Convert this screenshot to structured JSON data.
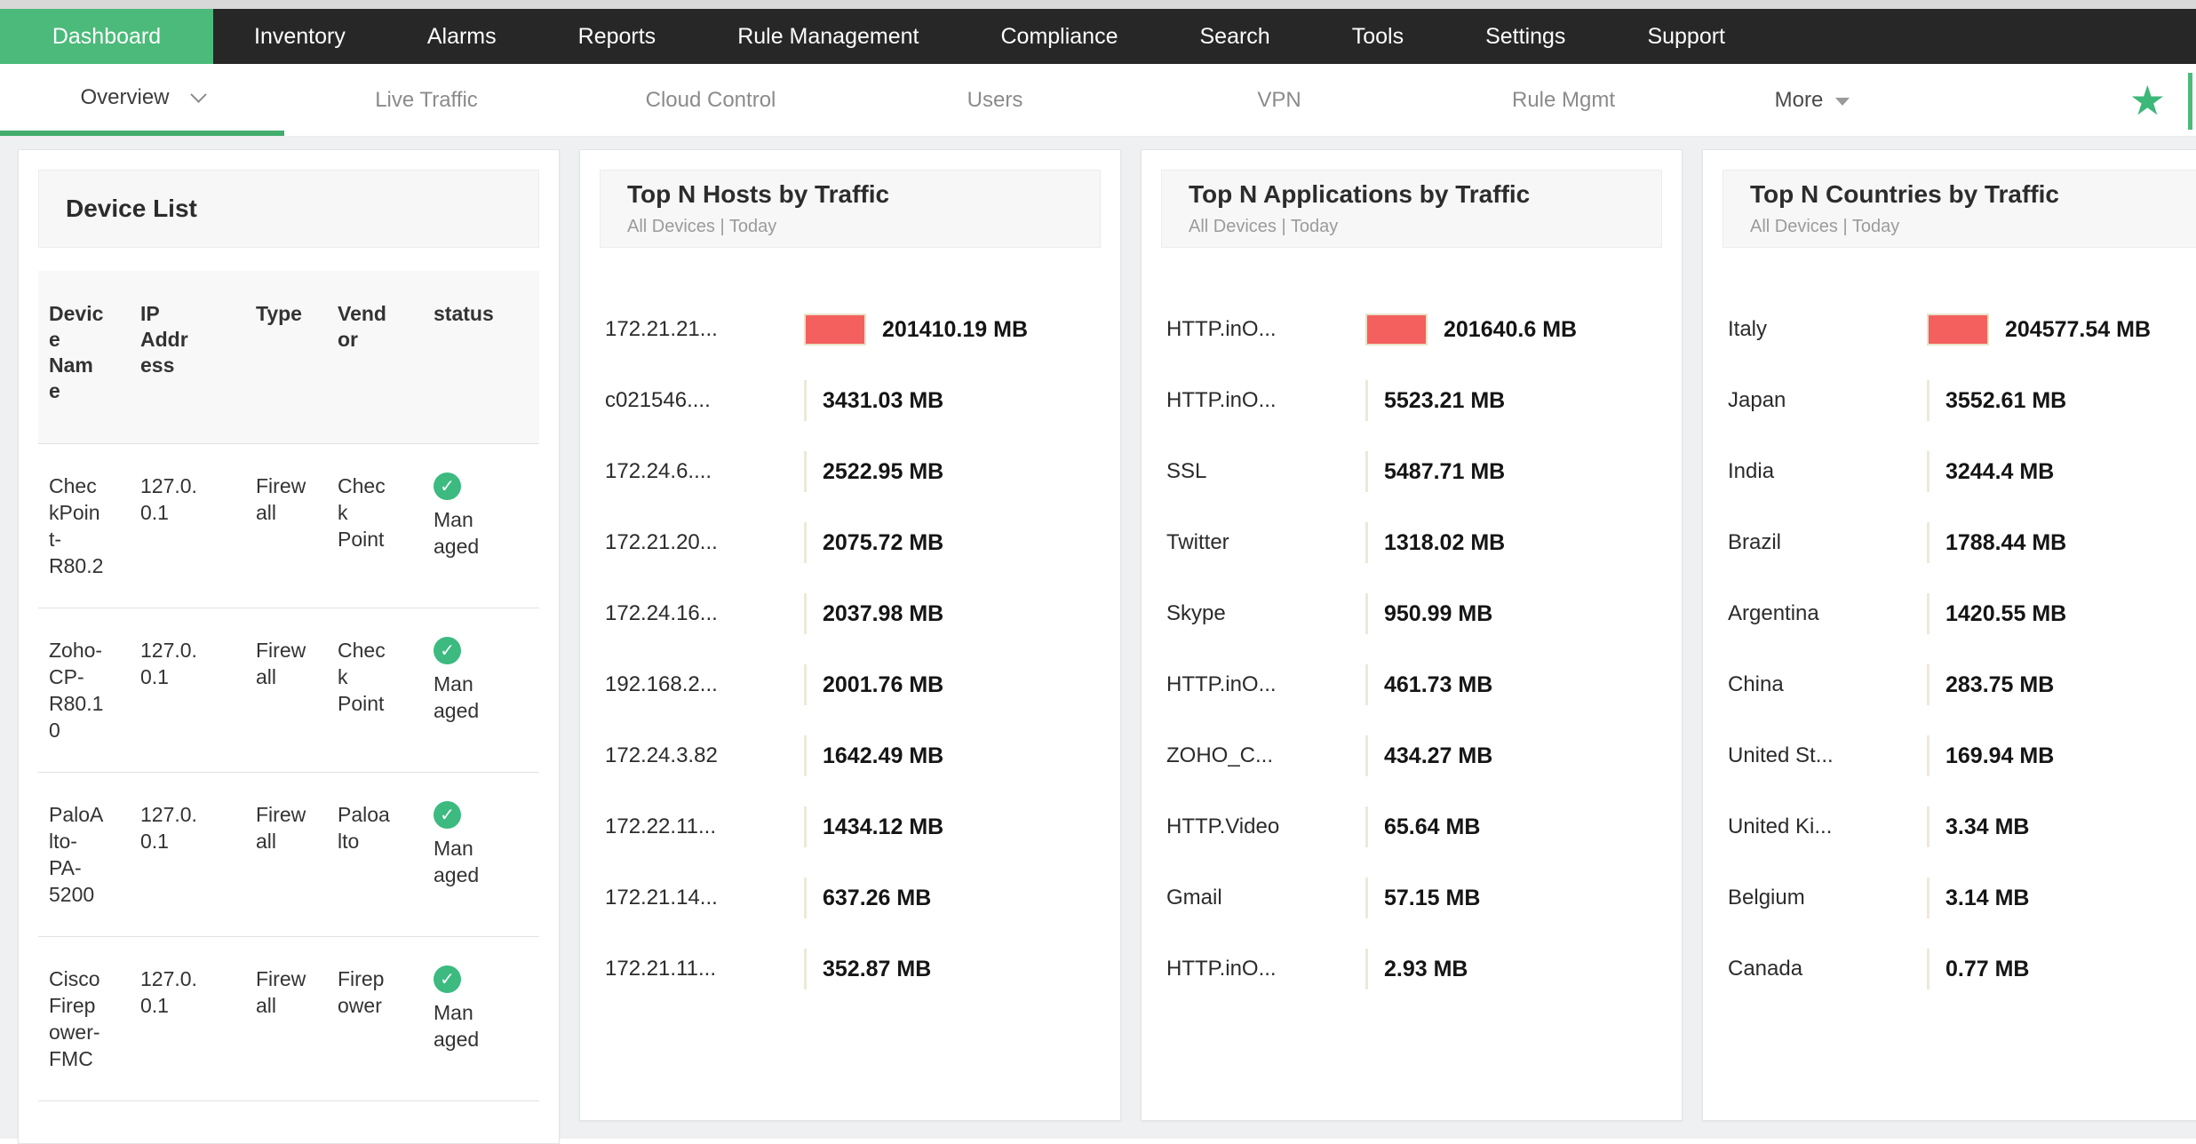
{
  "colors": {
    "accent_green": "#4cba7a",
    "underline_green": "#42ad6c",
    "star_green": "#3cb878",
    "check_green": "#3cba80",
    "bar_red": "#f4605e",
    "bar_border": "#e9e2c9",
    "nav_bg": "#272727"
  },
  "top_nav": {
    "items": [
      {
        "label": "Dashboard",
        "active": true
      },
      {
        "label": "Inventory",
        "active": false
      },
      {
        "label": "Alarms",
        "active": false
      },
      {
        "label": "Reports",
        "active": false
      },
      {
        "label": "Rule Management",
        "active": false
      },
      {
        "label": "Compliance",
        "active": false
      },
      {
        "label": "Search",
        "active": false
      },
      {
        "label": "Tools",
        "active": false
      },
      {
        "label": "Settings",
        "active": false
      },
      {
        "label": "Support",
        "active": false
      }
    ]
  },
  "sub_nav": {
    "items": [
      {
        "label": "Overview",
        "active": true,
        "dropdown": "open-chevron"
      },
      {
        "label": "Live Traffic",
        "active": false
      },
      {
        "label": "Cloud Control",
        "active": false
      },
      {
        "label": "Users",
        "active": false
      },
      {
        "label": "VPN",
        "active": false
      },
      {
        "label": "Rule Mgmt",
        "active": false
      },
      {
        "label": "More",
        "active": false,
        "dropdown": "solid-triangle"
      }
    ],
    "favorite_icon": "star-icon",
    "star_glyph": "★"
  },
  "device_list": {
    "title": "Device List",
    "columns": [
      "Device Name",
      "IP Address",
      "Type",
      "Vendor",
      "status"
    ],
    "rows": [
      {
        "name": "CheckPoint-R80.2",
        "ip": "127.0.0.1",
        "type": "Firewall",
        "vendor": "Check Point",
        "status": "Managed",
        "status_icon": "check-circle-icon"
      },
      {
        "name": "Zoho-CP-R80.10",
        "ip": "127.0.0.1",
        "type": "Firewall",
        "vendor": "Check Point",
        "status": "Managed",
        "status_icon": "check-circle-icon"
      },
      {
        "name": "PaloAlto-PA-5200",
        "ip": "127.0.0.1",
        "type": "Firewall",
        "vendor": "Paloalto",
        "status": "Managed",
        "status_icon": "check-circle-icon"
      },
      {
        "name": "Cisco Firepower-FMC",
        "ip": "127.0.0.1",
        "type": "Firewall",
        "vendor": "Firepower",
        "status": "Managed",
        "status_icon": "check-circle-icon"
      }
    ]
  },
  "chart_data": [
    {
      "type": "bar",
      "orientation": "horizontal",
      "title": "Top N Hosts by Traffic",
      "subtitle": "All Devices | Today",
      "unit": "MB",
      "bar_color": "#f4605e",
      "legend": false,
      "grid": false,
      "xlim": [
        0,
        201410.19
      ],
      "categories": [
        "172.21.21...",
        "c021546....",
        "172.24.6....",
        "172.21.20...",
        "172.24.16...",
        "192.168.2...",
        "172.24.3.82",
        "172.22.11...",
        "172.21.14...",
        "172.21.11..."
      ],
      "values": [
        201410.19,
        3431.03,
        2522.95,
        2075.72,
        2037.98,
        2001.76,
        1642.49,
        1434.12,
        637.26,
        352.87
      ],
      "value_labels": [
        "201410.19 MB",
        "3431.03 MB",
        "2522.95 MB",
        "2075.72 MB",
        "2037.98 MB",
        "2001.76 MB",
        "1642.49 MB",
        "1434.12 MB",
        "637.26 MB",
        "352.87 MB"
      ]
    },
    {
      "type": "bar",
      "orientation": "horizontal",
      "title": "Top N Applications by Traffic",
      "subtitle": "All Devices | Today",
      "unit": "MB",
      "bar_color": "#f4605e",
      "legend": false,
      "grid": false,
      "xlim": [
        0,
        201640.6
      ],
      "categories": [
        "HTTP.inO...",
        "HTTP.inO...",
        "SSL",
        "Twitter",
        "Skype",
        "HTTP.inO...",
        "ZOHO_C...",
        "HTTP.Video",
        "Gmail",
        "HTTP.inO..."
      ],
      "values": [
        201640.6,
        5523.21,
        5487.71,
        1318.02,
        950.99,
        461.73,
        434.27,
        65.64,
        57.15,
        2.93
      ],
      "value_labels": [
        "201640.6 MB",
        "5523.21 MB",
        "5487.71 MB",
        "1318.02 MB",
        "950.99 MB",
        "461.73 MB",
        "434.27 MB",
        "65.64 MB",
        "57.15 MB",
        "2.93 MB"
      ]
    },
    {
      "type": "bar",
      "orientation": "horizontal",
      "title": "Top N Countries by Traffic",
      "subtitle": "All Devices | Today",
      "unit": "MB",
      "bar_color": "#f4605e",
      "legend": false,
      "grid": false,
      "xlim": [
        0,
        204577.54
      ],
      "categories": [
        "Italy",
        "Japan",
        "India",
        "Brazil",
        "Argentina",
        "China",
        "United St...",
        "United Ki...",
        "Belgium",
        "Canada"
      ],
      "values": [
        204577.54,
        3552.61,
        3244.4,
        1788.44,
        1420.55,
        283.75,
        169.94,
        3.34,
        3.14,
        0.77
      ],
      "value_labels": [
        "204577.54 MB",
        "3552.61 MB",
        "3244.4 MB",
        "1788.44 MB",
        "1420.55 MB",
        "283.75 MB",
        "169.94 MB",
        "3.34 MB",
        "3.14 MB",
        "0.77 MB"
      ]
    }
  ]
}
